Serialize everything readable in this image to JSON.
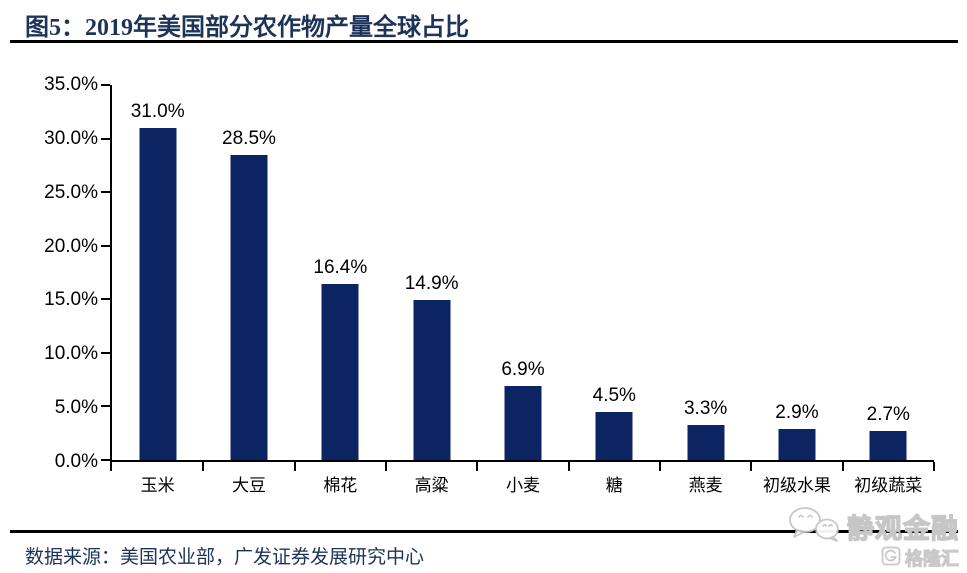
{
  "header": {
    "title": "图5：2019年美国部分农作物产量全球占比"
  },
  "chart_data": {
    "type": "bar",
    "title": "2019年美国部分农作物产量全球占比",
    "categories": [
      "玉米",
      "大豆",
      "棉花",
      "高粱",
      "小麦",
      "糖",
      "燕麦",
      "初级水果",
      "初级蔬菜"
    ],
    "values": [
      31.0,
      28.5,
      16.4,
      14.9,
      6.9,
      4.5,
      3.3,
      2.9,
      2.7
    ],
    "value_labels": [
      "31.0%",
      "28.5%",
      "16.4%",
      "14.9%",
      "6.9%",
      "4.5%",
      "3.3%",
      "2.9%",
      "2.7%"
    ],
    "xlabel": "",
    "ylabel": "",
    "ylim": [
      0,
      35
    ],
    "ytick_values": [
      0,
      5,
      10,
      15,
      20,
      25,
      30,
      35
    ],
    "yticks": [
      "0.0%",
      "5.0%",
      "10.0%",
      "15.0%",
      "20.0%",
      "25.0%",
      "30.0%",
      "35.0%"
    ],
    "grid": false,
    "legend": "none",
    "bar_color": "#0c2462",
    "axis_color": "#000000",
    "label_color": "#000000"
  },
  "footer": {
    "source": "数据来源：美国农业部，广发证券发展研究中心"
  },
  "watermark": {
    "wechat_icon": "wechat-bubbles-icon",
    "wechat_text": "静观金融",
    "brand_icon": "gelonghui-g-icon",
    "brand_text": "格隆汇"
  },
  "colors": {
    "title": "#1d3357",
    "rule": "#000000",
    "background": "#ffffff"
  }
}
